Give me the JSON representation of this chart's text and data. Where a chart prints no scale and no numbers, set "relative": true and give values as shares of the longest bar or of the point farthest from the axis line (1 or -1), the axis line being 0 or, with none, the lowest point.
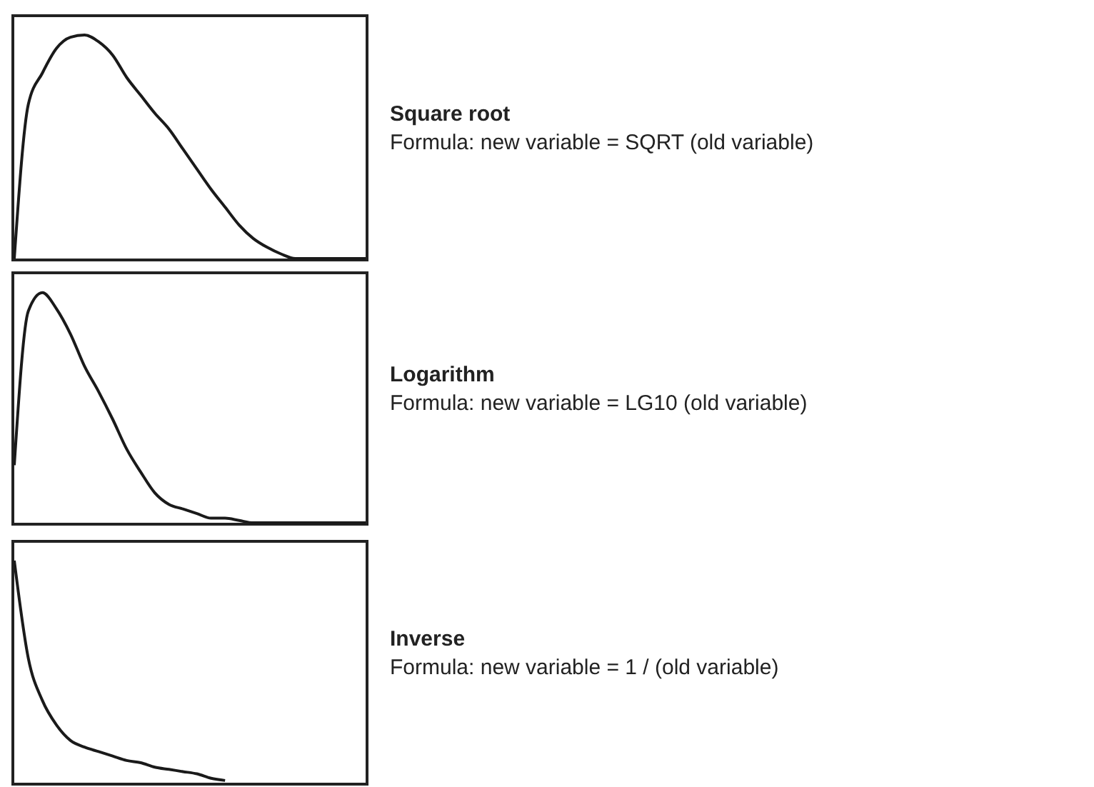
{
  "chart_data": [
    {
      "type": "line",
      "annotations": [
        "Square root",
        "Formula: new variable = SQRT (old variable)"
      ],
      "relative": true,
      "categories": [
        null,
        null,
        null,
        null,
        null,
        null,
        null,
        null,
        null,
        null,
        null,
        null,
        null,
        null,
        null,
        null,
        null,
        null,
        null,
        null,
        null,
        null,
        null,
        null,
        null,
        null
      ],
      "series": [
        {
          "color": "#1a1a1a",
          "values": [
            0,
            0.69,
            0.83,
            0.94,
            0.99,
            1,
            0.97,
            0.91,
            0.81,
            0.73,
            0.65,
            0.58,
            0.49,
            0.4,
            0.31,
            0.23,
            0.15,
            0.09,
            0.05,
            0.02,
            0,
            0,
            0,
            0,
            0,
            0
          ]
        }
      ]
    },
    {
      "type": "line",
      "annotations": [
        "Logarithm",
        "Formula: new variable = LG10 (old variable)"
      ],
      "relative": true,
      "categories": [
        null,
        null,
        null,
        null,
        null,
        null,
        null,
        null,
        null,
        null,
        null,
        null,
        null,
        null,
        null,
        null,
        null,
        null,
        null,
        null,
        null,
        null,
        null,
        null,
        null,
        null
      ],
      "series": [
        {
          "color": "#1a1a1a",
          "values": [
            0.25,
            0.92,
            1,
            0.93,
            0.82,
            0.68,
            0.57,
            0.45,
            0.32,
            0.22,
            0.13,
            0.08,
            0.06,
            0.04,
            0.02,
            0.02,
            0.01,
            0,
            0,
            0,
            0,
            0,
            0,
            0,
            0,
            0
          ]
        }
      ]
    },
    {
      "type": "line",
      "annotations": [
        "Inverse",
        "Formula: new variable = 1 / (old variable)"
      ],
      "relative": true,
      "categories": [
        null,
        null,
        null,
        null,
        null,
        null,
        null,
        null,
        null,
        null,
        null,
        null,
        null,
        null,
        null,
        null,
        null,
        null,
        null,
        null,
        null,
        null,
        null,
        null,
        null,
        null
      ],
      "series": [
        {
          "color": "#1a1a1a",
          "values": [
            1,
            0.56,
            0.37,
            0.26,
            0.19,
            0.16,
            0.14,
            0.12,
            0.1,
            0.09,
            0.07,
            0.06,
            0.05,
            0.04,
            0.02,
            0.01,
            null,
            null,
            null,
            null,
            null,
            null,
            null,
            null,
            null,
            null
          ]
        }
      ]
    }
  ]
}
